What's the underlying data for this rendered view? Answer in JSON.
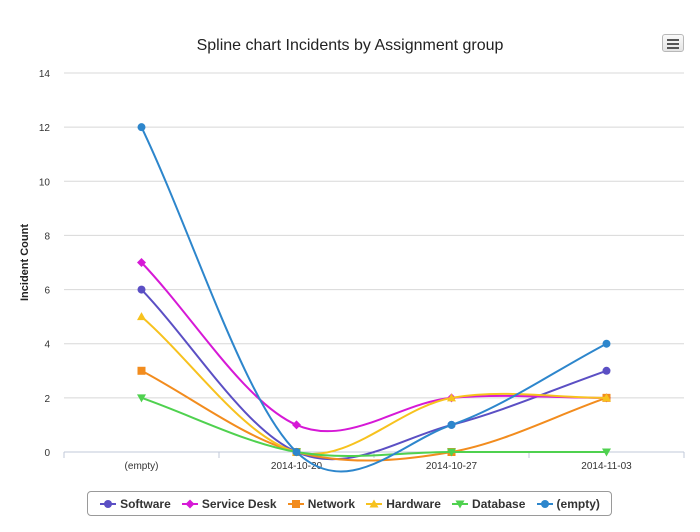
{
  "chart_data": {
    "type": "line",
    "subtype": "spline",
    "title": "Spline chart Incidents by Assignment group",
    "xlabel": "",
    "ylabel": "Incident Count",
    "categories": [
      "(empty)",
      "2014-10-20",
      "2014-10-27",
      "2014-11-03"
    ],
    "ylim": [
      0,
      14
    ],
    "yticks": [
      0,
      2,
      4,
      6,
      8,
      10,
      12,
      14
    ],
    "grid": true,
    "legend_position": "bottom",
    "series": [
      {
        "name": "Software",
        "values": [
          6,
          0,
          1,
          3
        ],
        "color": "#5b4fc4",
        "marker": "circle"
      },
      {
        "name": "Service Desk",
        "values": [
          7,
          1,
          2,
          2
        ],
        "color": "#d619d6",
        "marker": "diamond"
      },
      {
        "name": "Network",
        "values": [
          3,
          0,
          0,
          2
        ],
        "color": "#f28c1e",
        "marker": "square"
      },
      {
        "name": "Hardware",
        "values": [
          5,
          0,
          2,
          2
        ],
        "color": "#f7c21e",
        "marker": "triangle"
      },
      {
        "name": "Database",
        "values": [
          2,
          0,
          0,
          0
        ],
        "color": "#4fd14f",
        "marker": "triangle-down"
      },
      {
        "name": "(empty)",
        "values": [
          12,
          0,
          1,
          4
        ],
        "color": "#2d86cc",
        "marker": "circle"
      }
    ]
  },
  "menu": {
    "icon": "hamburger-menu-icon"
  }
}
